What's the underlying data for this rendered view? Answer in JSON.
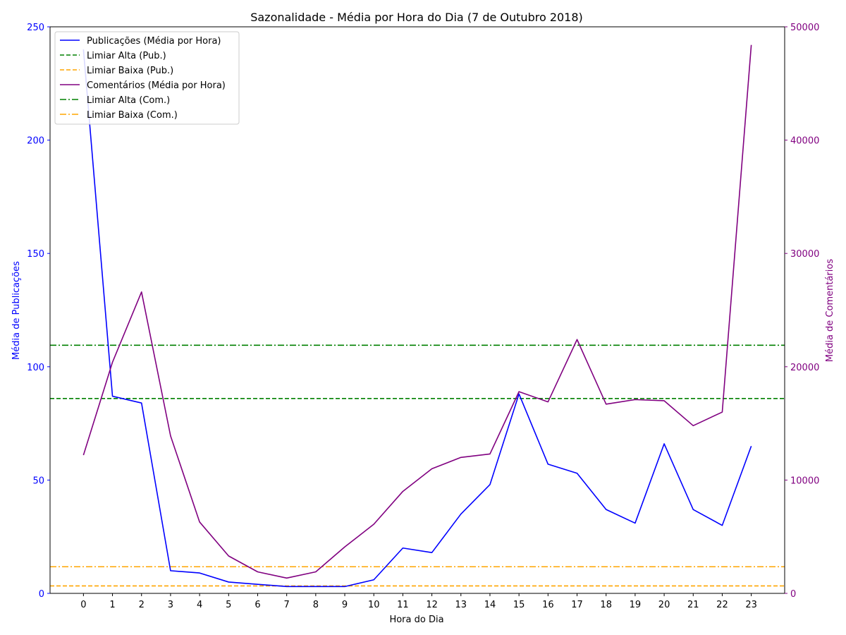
{
  "chart_data": {
    "type": "line",
    "title": "Sazonalidade - Média por Hora do Dia (7 de Outubro 2018)",
    "xlabel": "Hora do Dia",
    "ylabel_left": "Média de Publicações",
    "ylabel_right": "Média de Comentários",
    "x": [
      0,
      1,
      2,
      3,
      4,
      5,
      6,
      7,
      8,
      9,
      10,
      11,
      12,
      13,
      14,
      15,
      16,
      17,
      18,
      19,
      20,
      21,
      22,
      23
    ],
    "xlim": [
      -1.15,
      24.15
    ],
    "ylim_left": [
      0,
      250
    ],
    "ylim_right": [
      0,
      50000
    ],
    "yticks_left": [
      0,
      50,
      100,
      150,
      200,
      250
    ],
    "yticks_right": [
      0,
      10000,
      20000,
      30000,
      40000,
      50000
    ],
    "grid": false,
    "legend_position": "upper-left",
    "series": [
      {
        "name": "Publicações (Média por Hora)",
        "axis": "left",
        "color": "#0000ff",
        "style": "solid",
        "values": [
          240,
          87,
          84,
          10,
          9,
          5,
          4,
          3,
          3,
          3,
          6,
          20,
          18,
          35,
          48,
          88,
          57,
          53,
          37,
          31,
          66,
          37,
          30,
          65
        ]
      },
      {
        "name": "Comentários (Média por Hora)",
        "axis": "right",
        "color": "#800080",
        "style": "solid",
        "values": [
          12200,
          20400,
          26600,
          13900,
          6300,
          3300,
          1900,
          1350,
          1900,
          4100,
          6100,
          9000,
          11000,
          12000,
          12300,
          17800,
          16900,
          22400,
          16700,
          17100,
          17000,
          14800,
          16000,
          48400
        ]
      }
    ],
    "thresholds": [
      {
        "name": "Limiar Alta (Pub.)",
        "axis": "left",
        "value": 86,
        "color": "#008000",
        "style": "dashed"
      },
      {
        "name": "Limiar Baixa (Pub.)",
        "axis": "left",
        "value": 3.3,
        "color": "#ffa500",
        "style": "dashed"
      },
      {
        "name": "Limiar Alta (Com.)",
        "axis": "right",
        "value": 21900,
        "color": "#008000",
        "style": "dashdot"
      },
      {
        "name": "Limiar Baixa (Com.)",
        "axis": "right",
        "value": 2350,
        "color": "#ffa500",
        "style": "dashdot"
      }
    ],
    "legend": [
      {
        "label": "Publicações (Média por Hora)",
        "color": "#0000ff",
        "style": "solid"
      },
      {
        "label": "Limiar Alta (Pub.)",
        "color": "#008000",
        "style": "dashed"
      },
      {
        "label": "Limiar Baixa (Pub.)",
        "color": "#ffa500",
        "style": "dashed"
      },
      {
        "label": "Comentários (Média por Hora)",
        "color": "#800080",
        "style": "solid"
      },
      {
        "label": "Limiar Alta (Com.)",
        "color": "#008000",
        "style": "dashdot"
      },
      {
        "label": "Limiar Baixa (Com.)",
        "color": "#ffa500",
        "style": "dashdot"
      }
    ],
    "colors": {
      "left_axis": "#0000ff",
      "right_axis": "#800080"
    }
  }
}
